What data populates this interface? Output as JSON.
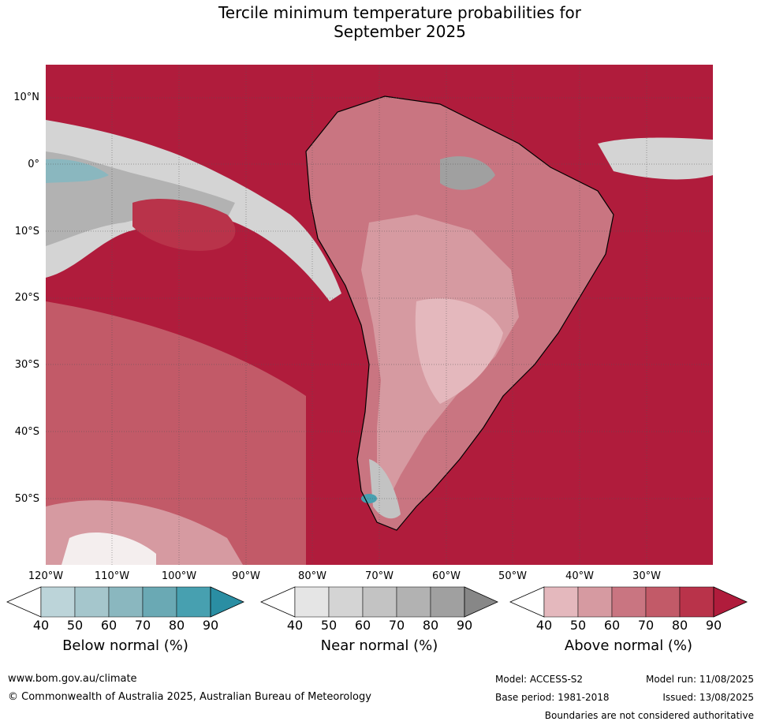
{
  "title_line1": "Tercile minimum temperature probabilities for",
  "title_line2": "September 2025",
  "map": {
    "lat_labels": [
      "10°N",
      "0°",
      "10°S",
      "20°S",
      "30°S",
      "40°S",
      "50°S"
    ],
    "lon_labels": [
      "120°W",
      "110°W",
      "100°W",
      "90°W",
      "80°W",
      "70°W",
      "60°W",
      "50°W",
      "40°W",
      "30°W"
    ],
    "colors": {
      "above": [
        "#e4b8bd",
        "#d69aa1",
        "#c97581",
        "#c25a68",
        "#b9334a",
        "#b01c3c"
      ],
      "near": [
        "#e5e5e5",
        "#d4d4d4",
        "#c3c3c3",
        "#b2b2b2",
        "#a0a0a0",
        "#878787"
      ],
      "below": [
        "#bcd4d9",
        "#a5c6cc",
        "#8ab7bf",
        "#6aa9b4",
        "#47a0b0",
        "#2a8ea3"
      ]
    }
  },
  "legend": {
    "below": {
      "title": "Below normal (%)",
      "ticks": [
        "40",
        "50",
        "60",
        "70",
        "80",
        "90"
      ]
    },
    "near": {
      "title": "Near normal (%)",
      "ticks": [
        "40",
        "50",
        "60",
        "70",
        "80",
        "90"
      ]
    },
    "above": {
      "title": "Above normal (%)",
      "ticks": [
        "40",
        "50",
        "60",
        "70",
        "80",
        "90"
      ]
    }
  },
  "footer": {
    "website": "www.bom.gov.au/climate",
    "copyright": "© Commonwealth of Australia 2025, Australian Bureau of Meteorology",
    "model": "Model: ACCESS-S2",
    "base_period": "Base period: 1981-2018",
    "model_run": "Model run: 11/08/2025",
    "issued": "Issued: 13/08/2025",
    "disclaimer": "Boundaries are not considered authoritative"
  }
}
